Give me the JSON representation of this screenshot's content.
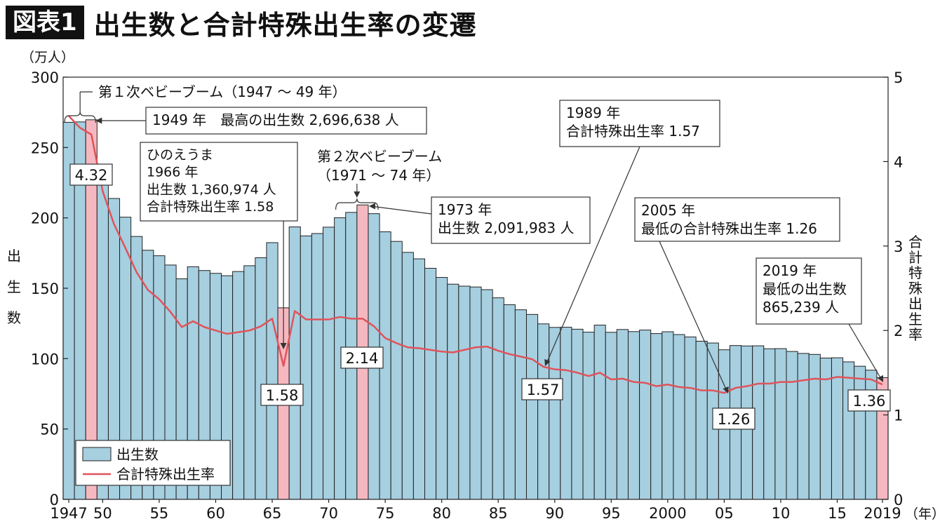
{
  "title_badge": "図表1",
  "title": "出生数と合計特殊出生率の変遷",
  "chart_data": {
    "type": "bar",
    "x": [
      1947,
      1948,
      1949,
      1950,
      1951,
      1952,
      1953,
      1954,
      1955,
      1956,
      1957,
      1958,
      1959,
      1960,
      1961,
      1962,
      1963,
      1964,
      1965,
      1966,
      1967,
      1968,
      1969,
      1970,
      1971,
      1972,
      1973,
      1974,
      1975,
      1976,
      1977,
      1978,
      1979,
      1980,
      1981,
      1982,
      1983,
      1984,
      1985,
      1986,
      1987,
      1988,
      1989,
      1990,
      1991,
      1992,
      1993,
      1994,
      1995,
      1996,
      1997,
      1998,
      1999,
      2000,
      2001,
      2002,
      2003,
      2004,
      2005,
      2006,
      2007,
      2008,
      2009,
      2010,
      2011,
      2012,
      2013,
      2014,
      2015,
      2016,
      2017,
      2018,
      2019
    ],
    "series": [
      {
        "name": "出生数",
        "axis": "left",
        "color": "#a6cfe0",
        "highlight_color": "#f6b8c0",
        "highlight_years": [
          1949,
          1966,
          1973,
          2019
        ],
        "values": [
          267.9,
          268.2,
          269.7,
          233.8,
          213.8,
          200.5,
          186.8,
          177.0,
          173.1,
          166.5,
          156.7,
          165.3,
          162.6,
          160.6,
          158.9,
          161.9,
          166.0,
          171.7,
          182.4,
          136.1,
          193.6,
          187.2,
          188.9,
          193.4,
          200.1,
          203.9,
          209.2,
          203.0,
          190.1,
          183.3,
          175.5,
          170.9,
          164.2,
          157.7,
          152.9,
          151.5,
          150.9,
          149.0,
          143.2,
          138.3,
          134.7,
          131.4,
          124.7,
          122.2,
          122.3,
          120.9,
          118.8,
          123.8,
          118.7,
          120.7,
          119.2,
          120.3,
          117.8,
          119.1,
          117.1,
          115.4,
          112.4,
          111.1,
          106.3,
          109.3,
          109.0,
          109.1,
          107.0,
          107.1,
          105.1,
          103.7,
          103.0,
          100.4,
          100.6,
          97.7,
          94.6,
          91.8,
          86.5
        ]
      },
      {
        "name": "合計特殊出生率",
        "axis": "right",
        "color": "#e0535a",
        "values": [
          4.54,
          4.4,
          4.32,
          3.65,
          3.26,
          2.98,
          2.69,
          2.48,
          2.37,
          2.22,
          2.04,
          2.11,
          2.04,
          2.0,
          1.96,
          1.98,
          2.0,
          2.05,
          2.14,
          1.58,
          2.23,
          2.13,
          2.13,
          2.13,
          2.16,
          2.14,
          2.14,
          2.05,
          1.91,
          1.85,
          1.8,
          1.79,
          1.77,
          1.75,
          1.74,
          1.77,
          1.8,
          1.81,
          1.76,
          1.72,
          1.69,
          1.66,
          1.57,
          1.54,
          1.53,
          1.5,
          1.46,
          1.5,
          1.42,
          1.43,
          1.39,
          1.38,
          1.34,
          1.36,
          1.33,
          1.32,
          1.29,
          1.29,
          1.26,
          1.32,
          1.34,
          1.37,
          1.37,
          1.39,
          1.39,
          1.41,
          1.43,
          1.42,
          1.45,
          1.44,
          1.43,
          1.42,
          1.36
        ]
      }
    ],
    "left_axis": {
      "label": "出生数",
      "unit": "（万人）",
      "range": [
        0,
        300
      ],
      "ticks": [
        0,
        50,
        100,
        150,
        200,
        250,
        300
      ]
    },
    "right_axis": {
      "label": "合計特殊出生率",
      "range": [
        0,
        5
      ],
      "ticks": [
        0,
        1,
        2,
        3,
        4,
        5
      ]
    },
    "x_ticks": [
      {
        "year": 1947,
        "label": "1947"
      },
      {
        "year": 1950,
        "label": "50"
      },
      {
        "year": 1955,
        "label": "55"
      },
      {
        "year": 1960,
        "label": "60"
      },
      {
        "year": 1965,
        "label": "65"
      },
      {
        "year": 1970,
        "label": "70"
      },
      {
        "year": 1975,
        "label": "75"
      },
      {
        "year": 1980,
        "label": "80"
      },
      {
        "year": 1985,
        "label": "85"
      },
      {
        "year": 1990,
        "label": "90"
      },
      {
        "year": 1995,
        "label": "95"
      },
      {
        "year": 2000,
        "label": "2000"
      },
      {
        "year": 2005,
        "label": "05"
      },
      {
        "year": 2010,
        "label": "10"
      },
      {
        "year": 2015,
        "label": "15"
      },
      {
        "year": 2019,
        "label": "2019"
      }
    ],
    "x_unit": "（年）",
    "legend": {
      "position": "bottom-left",
      "entries": [
        "出生数",
        "合計特殊出生率"
      ]
    },
    "annotations": {
      "boom1": "第１次ベビーブーム（1947 ～ 49 年）",
      "max_births": "1949 年　最高の出生数 2,696,638 人",
      "hinoeuma": [
        "ひのえうま",
        "1966 年",
        "出生数 1,360,974 人",
        "合計特殊出生率 1.58"
      ],
      "boom2": [
        "第２次ベビーブーム",
        "（1971 ～ 74 年）"
      ],
      "y1973": [
        "1973 年",
        "出生数 2,091,983 人"
      ],
      "y1989": [
        "1989 年",
        "合計特殊出生率 1.57"
      ],
      "y2005": [
        "2005 年",
        "最低の合計特殊出生率 1.26"
      ],
      "y2019": [
        "2019 年",
        "最低の出生数",
        "865,239 人"
      ]
    },
    "rate_labels": [
      {
        "year": 1949,
        "value": 4.32,
        "text": "4.32"
      },
      {
        "year": 1966,
        "value": 1.58,
        "text": "1.58"
      },
      {
        "year": 1973,
        "value": 2.14,
        "text": "2.14"
      },
      {
        "year": 1989,
        "value": 1.57,
        "text": "1.57"
      },
      {
        "year": 2005,
        "value": 1.26,
        "text": "1.26"
      },
      {
        "year": 2019,
        "value": 1.36,
        "text": "1.36"
      }
    ]
  }
}
